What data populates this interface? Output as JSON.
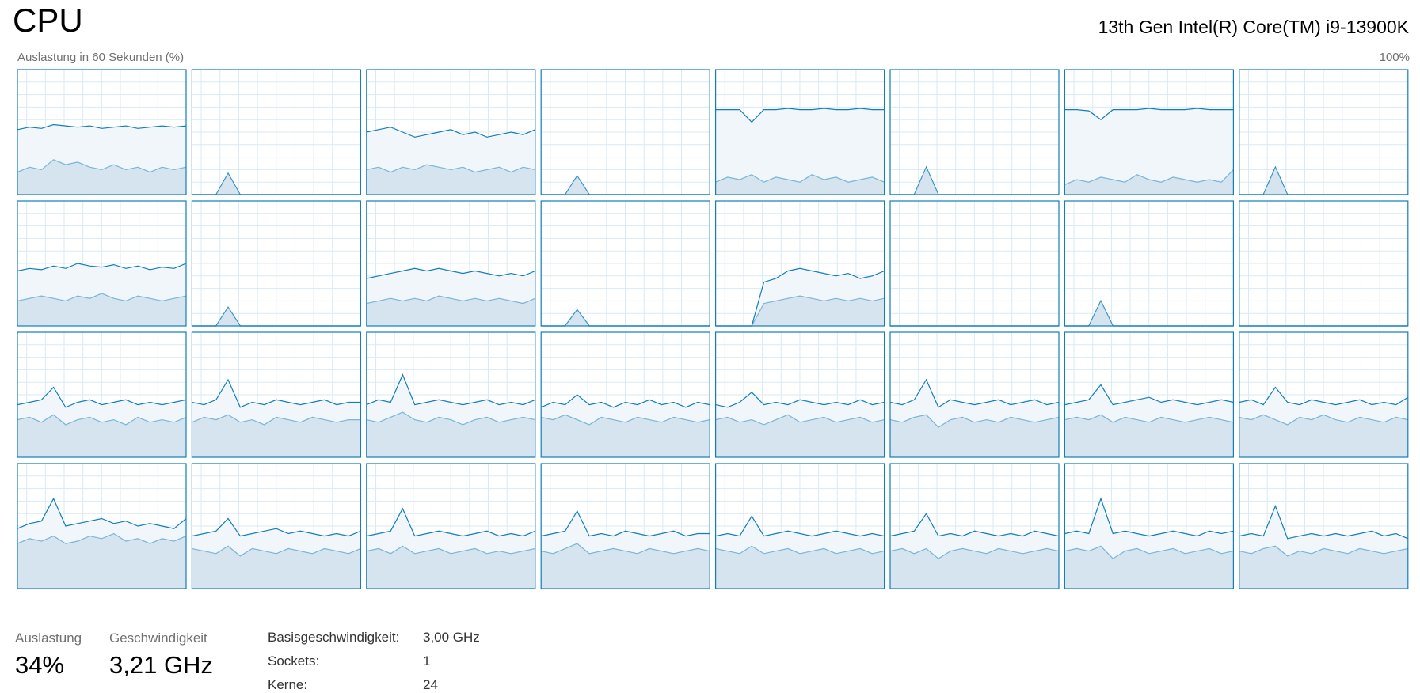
{
  "header": {
    "title": "CPU",
    "model": "13th Gen Intel(R) Core(TM) i9-13900K"
  },
  "graph": {
    "label": "Auslastung in 60 Sekunden (%)",
    "max_label": "100%",
    "ylim": [
      0,
      100
    ],
    "cores": [
      {
        "total": [
          52,
          54,
          53,
          56,
          55,
          54,
          55,
          53,
          54,
          55,
          53,
          54,
          55,
          54,
          55
        ],
        "kernel": [
          18,
          22,
          20,
          28,
          24,
          26,
          22,
          20,
          24,
          20,
          22,
          18,
          22,
          20,
          22
        ]
      },
      {
        "total": [
          0,
          0,
          0,
          17,
          0,
          0,
          0,
          0,
          0,
          0,
          0,
          0,
          0,
          0,
          0
        ],
        "kernel": [
          0,
          0,
          0,
          17,
          0,
          0,
          0,
          0,
          0,
          0,
          0,
          0,
          0,
          0,
          0
        ]
      },
      {
        "total": [
          50,
          52,
          54,
          50,
          46,
          48,
          50,
          52,
          48,
          50,
          46,
          48,
          50,
          48,
          52
        ],
        "kernel": [
          20,
          22,
          18,
          22,
          20,
          24,
          22,
          20,
          22,
          18,
          20,
          22,
          18,
          22,
          20
        ]
      },
      {
        "total": [
          0,
          0,
          0,
          15,
          0,
          0,
          0,
          0,
          0,
          0,
          0,
          0,
          0,
          0,
          0
        ],
        "kernel": [
          0,
          0,
          0,
          15,
          0,
          0,
          0,
          0,
          0,
          0,
          0,
          0,
          0,
          0,
          0
        ]
      },
      {
        "total": [
          68,
          68,
          68,
          58,
          68,
          68,
          69,
          68,
          68,
          69,
          68,
          68,
          69,
          68,
          68
        ],
        "kernel": [
          10,
          14,
          12,
          16,
          10,
          14,
          12,
          10,
          16,
          12,
          14,
          10,
          12,
          14,
          10
        ]
      },
      {
        "total": [
          0,
          0,
          0,
          22,
          0,
          0,
          0,
          0,
          0,
          0,
          0,
          0,
          0,
          0,
          0
        ],
        "kernel": [
          0,
          0,
          0,
          22,
          0,
          0,
          0,
          0,
          0,
          0,
          0,
          0,
          0,
          0,
          0
        ]
      },
      {
        "total": [
          68,
          68,
          67,
          60,
          68,
          68,
          68,
          69,
          68,
          68,
          68,
          69,
          68,
          68,
          68
        ],
        "kernel": [
          8,
          12,
          10,
          14,
          12,
          10,
          16,
          12,
          10,
          14,
          12,
          10,
          12,
          10,
          20
        ]
      },
      {
        "total": [
          0,
          0,
          0,
          22,
          0,
          0,
          0,
          0,
          0,
          0,
          0,
          0,
          0,
          0,
          0
        ],
        "kernel": [
          0,
          0,
          0,
          22,
          0,
          0,
          0,
          0,
          0,
          0,
          0,
          0,
          0,
          0,
          0
        ]
      },
      {
        "total": [
          44,
          46,
          45,
          48,
          46,
          50,
          48,
          47,
          49,
          46,
          48,
          45,
          47,
          46,
          50
        ],
        "kernel": [
          20,
          22,
          24,
          22,
          20,
          24,
          22,
          26,
          22,
          20,
          24,
          22,
          20,
          22,
          24
        ]
      },
      {
        "total": [
          0,
          0,
          0,
          15,
          0,
          0,
          0,
          0,
          0,
          0,
          0,
          0,
          0,
          0,
          0
        ],
        "kernel": [
          0,
          0,
          0,
          15,
          0,
          0,
          0,
          0,
          0,
          0,
          0,
          0,
          0,
          0,
          0
        ]
      },
      {
        "total": [
          38,
          40,
          42,
          44,
          46,
          44,
          46,
          44,
          42,
          44,
          42,
          40,
          42,
          40,
          44
        ],
        "kernel": [
          18,
          20,
          22,
          20,
          22,
          20,
          24,
          22,
          20,
          22,
          20,
          22,
          20,
          18,
          22
        ]
      },
      {
        "total": [
          0,
          0,
          0,
          13,
          0,
          0,
          0,
          0,
          0,
          0,
          0,
          0,
          0,
          0,
          0
        ],
        "kernel": [
          0,
          0,
          0,
          13,
          0,
          0,
          0,
          0,
          0,
          0,
          0,
          0,
          0,
          0,
          0
        ]
      },
      {
        "total": [
          0,
          0,
          0,
          0,
          35,
          38,
          44,
          46,
          44,
          42,
          40,
          42,
          38,
          40,
          44
        ],
        "kernel": [
          0,
          0,
          0,
          0,
          18,
          20,
          22,
          24,
          22,
          20,
          22,
          20,
          22,
          20,
          22
        ]
      },
      {
        "total": [
          0,
          0,
          0,
          0,
          0,
          0,
          0,
          0,
          0,
          0,
          0,
          0,
          0,
          0,
          0
        ],
        "kernel": [
          0,
          0,
          0,
          0,
          0,
          0,
          0,
          0,
          0,
          0,
          0,
          0,
          0,
          0,
          0
        ]
      },
      {
        "total": [
          0,
          0,
          0,
          20,
          0,
          0,
          0,
          0,
          0,
          0,
          0,
          0,
          0,
          0,
          0
        ],
        "kernel": [
          0,
          0,
          0,
          20,
          0,
          0,
          0,
          0,
          0,
          0,
          0,
          0,
          0,
          0,
          0
        ]
      },
      {
        "total": [
          0,
          0,
          0,
          0,
          0,
          0,
          0,
          0,
          0,
          0,
          0,
          0,
          0,
          0,
          0
        ],
        "kernel": [
          0,
          0,
          0,
          0,
          0,
          0,
          0,
          0,
          0,
          0,
          0,
          0,
          0,
          0,
          0
        ]
      },
      {
        "total": [
          42,
          44,
          46,
          56,
          40,
          44,
          46,
          42,
          44,
          46,
          42,
          44,
          42,
          44,
          46
        ],
        "kernel": [
          30,
          32,
          28,
          34,
          26,
          30,
          32,
          28,
          30,
          26,
          32,
          28,
          30,
          28,
          32
        ]
      },
      {
        "total": [
          44,
          42,
          46,
          62,
          40,
          44,
          42,
          46,
          44,
          42,
          44,
          46,
          42,
          44,
          44
        ],
        "kernel": [
          28,
          32,
          30,
          34,
          28,
          30,
          26,
          32,
          30,
          28,
          32,
          30,
          28,
          30,
          30
        ]
      },
      {
        "total": [
          42,
          46,
          44,
          66,
          42,
          44,
          46,
          44,
          42,
          44,
          46,
          42,
          44,
          42,
          46
        ],
        "kernel": [
          30,
          28,
          32,
          36,
          30,
          28,
          32,
          30,
          26,
          30,
          32,
          28,
          30,
          32,
          30
        ]
      },
      {
        "total": [
          40,
          44,
          42,
          50,
          42,
          44,
          40,
          44,
          42,
          46,
          42,
          44,
          40,
          44,
          42
        ],
        "kernel": [
          32,
          30,
          34,
          30,
          26,
          32,
          30,
          28,
          32,
          30,
          28,
          32,
          30,
          28,
          30
        ]
      },
      {
        "total": [
          42,
          40,
          44,
          52,
          42,
          44,
          42,
          46,
          44,
          42,
          44,
          42,
          46,
          42,
          44
        ],
        "kernel": [
          30,
          32,
          28,
          30,
          26,
          30,
          34,
          28,
          30,
          32,
          28,
          30,
          32,
          28,
          30
        ]
      },
      {
        "total": [
          44,
          42,
          46,
          62,
          40,
          46,
          44,
          42,
          44,
          46,
          42,
          44,
          46,
          42,
          44
        ],
        "kernel": [
          30,
          28,
          32,
          34,
          24,
          30,
          32,
          28,
          30,
          28,
          32,
          30,
          28,
          30,
          32
        ]
      },
      {
        "total": [
          42,
          44,
          46,
          58,
          42,
          44,
          46,
          48,
          44,
          46,
          44,
          42,
          44,
          46,
          44
        ],
        "kernel": [
          30,
          32,
          30,
          34,
          28,
          32,
          30,
          28,
          32,
          30,
          28,
          30,
          32,
          30,
          28
        ]
      },
      {
        "total": [
          44,
          46,
          42,
          56,
          44,
          42,
          46,
          44,
          42,
          44,
          46,
          42,
          44,
          42,
          48
        ],
        "kernel": [
          32,
          30,
          34,
          30,
          26,
          32,
          30,
          34,
          30,
          28,
          32,
          30,
          28,
          32,
          30
        ]
      },
      {
        "total": [
          48,
          52,
          54,
          72,
          50,
          52,
          54,
          56,
          52,
          54,
          50,
          52,
          50,
          48,
          56
        ],
        "kernel": [
          36,
          40,
          38,
          42,
          36,
          38,
          42,
          40,
          44,
          38,
          40,
          36,
          40,
          38,
          42
        ]
      },
      {
        "total": [
          42,
          44,
          46,
          56,
          42,
          44,
          46,
          48,
          44,
          46,
          44,
          42,
          44,
          42,
          46
        ],
        "kernel": [
          32,
          30,
          28,
          34,
          26,
          32,
          30,
          28,
          32,
          30,
          28,
          32,
          30,
          28,
          32
        ]
      },
      {
        "total": [
          42,
          44,
          46,
          64,
          42,
          44,
          46,
          44,
          42,
          44,
          46,
          42,
          44,
          42,
          46
        ],
        "kernel": [
          30,
          32,
          28,
          34,
          28,
          30,
          32,
          28,
          30,
          32,
          28,
          30,
          28,
          30,
          32
        ]
      },
      {
        "total": [
          42,
          44,
          46,
          62,
          42,
          44,
          42,
          46,
          44,
          42,
          44,
          46,
          42,
          44,
          44
        ],
        "kernel": [
          30,
          28,
          32,
          36,
          28,
          30,
          32,
          30,
          28,
          32,
          30,
          28,
          30,
          32,
          30
        ]
      },
      {
        "total": [
          42,
          44,
          42,
          58,
          42,
          44,
          46,
          44,
          42,
          44,
          46,
          44,
          42,
          44,
          42
        ],
        "kernel": [
          32,
          30,
          28,
          34,
          28,
          30,
          32,
          28,
          30,
          32,
          28,
          30,
          32,
          28,
          30
        ]
      },
      {
        "total": [
          42,
          44,
          46,
          60,
          42,
          44,
          42,
          46,
          44,
          42,
          44,
          42,
          46,
          44,
          42
        ],
        "kernel": [
          30,
          32,
          28,
          32,
          24,
          30,
          32,
          30,
          28,
          32,
          30,
          28,
          30,
          32,
          30
        ]
      },
      {
        "total": [
          44,
          46,
          44,
          72,
          44,
          46,
          44,
          42,
          44,
          46,
          44,
          42,
          46,
          44,
          46
        ],
        "kernel": [
          30,
          32,
          30,
          34,
          24,
          30,
          32,
          28,
          30,
          32,
          28,
          30,
          32,
          28,
          30
        ]
      },
      {
        "total": [
          42,
          44,
          42,
          66,
          40,
          42,
          44,
          42,
          44,
          42,
          44,
          46,
          42,
          44,
          40
        ],
        "kernel": [
          30,
          28,
          32,
          34,
          26,
          30,
          28,
          32,
          30,
          28,
          32,
          30,
          28,
          30,
          32
        ]
      }
    ]
  },
  "stats": {
    "utilization": {
      "label": "Auslastung",
      "value": "34%"
    },
    "speed": {
      "label": "Geschwindigkeit",
      "value": "3,21 GHz"
    },
    "details": [
      [
        "Basisgeschwindigkeit:",
        "3,00 GHz"
      ],
      [
        "Sockets:",
        "1"
      ],
      [
        "Kerne:",
        "24"
      ]
    ]
  }
}
